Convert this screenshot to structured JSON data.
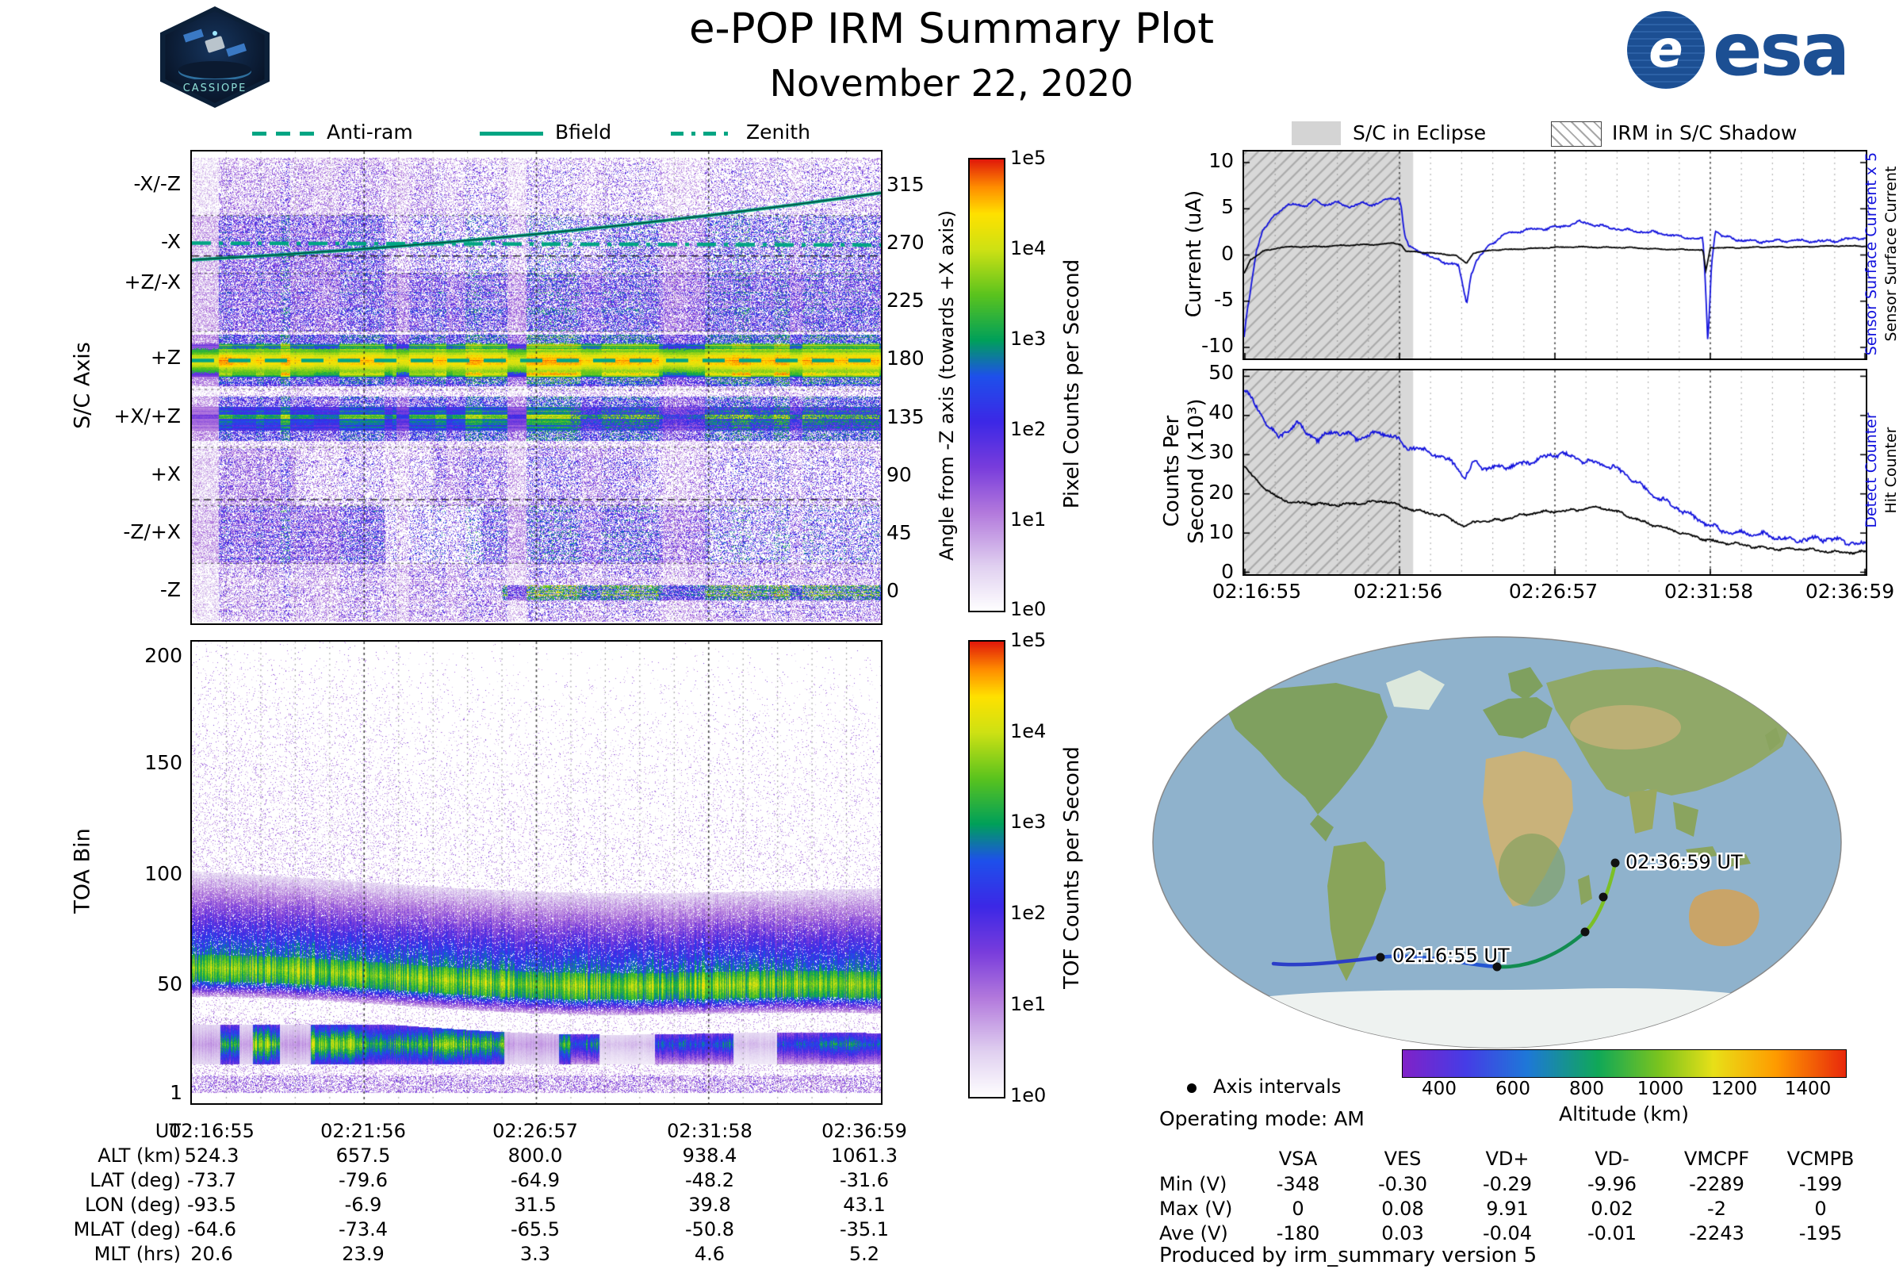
{
  "header": {
    "title": "e-POP IRM Summary Plot",
    "date": "November 22, 2020",
    "mission_badge": "CASSIOPE",
    "esa": {
      "circle_letter": "e",
      "wordmark": "esa"
    }
  },
  "colors": {
    "attitude_teal": "#00a583",
    "series_blue": "#1212dd",
    "series_black": "#000000",
    "eclipse_gray": "#d8d8d8"
  },
  "attitude_legend": [
    {
      "label": "Anti-ram",
      "style": "dashed"
    },
    {
      "label": "Bfield",
      "style": "solid"
    },
    {
      "label": "Zenith",
      "style": "dash-dot"
    }
  ],
  "eclipse_legend": [
    {
      "label": "S/C in Eclipse",
      "swatch": "solid-gray"
    },
    {
      "label": "IRM in S/C Shadow",
      "swatch": "hatched"
    }
  ],
  "chart_data": [
    {
      "id": "sc-axis-spectrogram",
      "type": "heatmap",
      "ylabel_left": "S/C Axis",
      "ylabel_right": "Angle from -Z axis (towards +X axis)",
      "yticks_left": [
        "-X/-Z",
        "-X",
        "+Z/-X",
        "+Z",
        "+X/+Z",
        "+X",
        "-Z/+X",
        "-Z"
      ],
      "yticks_right": [
        "315",
        "270",
        "225",
        "180",
        "135",
        "90",
        "45",
        "0"
      ],
      "xticks": [
        "02:16:55",
        "02:21:56",
        "02:26:57",
        "02:31:58",
        "02:36:59"
      ],
      "colorbar": {
        "label": "Pixel Counts per Second",
        "ticks": [
          "1e5",
          "1e4",
          "1e3",
          "1e2",
          "1e1",
          "1e0"
        ]
      },
      "overlay_lines": [
        {
          "name": "Anti-ram",
          "style": "dashed",
          "angle_deg": 180
        },
        {
          "name": "Bfield",
          "style": "solid",
          "angle_start_deg": 258,
          "angle_end_deg": 310
        },
        {
          "name": "Zenith",
          "style": "dash-dot",
          "angle_deg": 271
        }
      ],
      "band_levels": [
        {
          "axis": "-X/-Z",
          "angle_deg": 315,
          "counts_cps": "1e1-1e2 sparse"
        },
        {
          "axis": "-X",
          "angle_deg": 270,
          "counts_cps": "1e2 patchy, denser before 02:22"
        },
        {
          "axis": "+Z/-X",
          "angle_deg": 225,
          "counts_cps": "1e2 dense"
        },
        {
          "axis": "+Z",
          "angle_deg": 180,
          "counts_cps": "1e4-1e5 continuous bright band"
        },
        {
          "axis": "+X/+Z",
          "angle_deg": 135,
          "counts_cps": "1e3 green band"
        },
        {
          "axis": "+X",
          "angle_deg": 90,
          "counts_cps": "1e1-1e2 streaky"
        },
        {
          "axis": "-Z/+X",
          "angle_deg": 45,
          "counts_cps": "1e2 dense patches"
        },
        {
          "axis": "-Z",
          "angle_deg": 0,
          "counts_cps": "1e1-1e3, green streak at bottom after 02:26"
        }
      ]
    },
    {
      "id": "toa-spectrogram",
      "type": "heatmap",
      "ylabel": "TOA Bin",
      "yticks": [
        "200",
        "150",
        "100",
        "50",
        "1"
      ],
      "xticks": [
        "02:16:55",
        "02:21:56",
        "02:26:57",
        "02:31:58",
        "02:36:59"
      ],
      "colorbar": {
        "label": "TOF Counts per Second",
        "ticks": [
          "1e5",
          "1e4",
          "1e3",
          "1e2",
          "1e1",
          "1e0"
        ]
      },
      "features": {
        "main_band": "bins 45-70, center drifting 57 to 49, ~1e3 cps",
        "halo": "blue halo bins 65-105 at 1e1-1e2",
        "gap": "white gap bins 33-45",
        "secondary_band": "bins 16-32, green blobs turning blue after 02:27",
        "speckle": "sparse <=1e1 speckle up to bin 200"
      }
    },
    {
      "id": "sensor-current",
      "type": "line",
      "ylabel": "Current (uA)",
      "ylim": [
        -11.2,
        11.2
      ],
      "yticks": [
        10,
        5,
        0,
        -5,
        -10
      ],
      "xticks": [
        "02:16:55",
        "02:21:56",
        "02:26:57",
        "02:31:58",
        "02:36:59"
      ],
      "right_axis_labels": [
        {
          "text": "Sensor Surface Current x 5",
          "color": "#1212dd"
        },
        {
          "text": "Sensor Surface Current",
          "color": "#000000"
        }
      ],
      "eclipse_end_frac": 0.272,
      "shadow_end_frac": 0.252,
      "series": [
        {
          "name": "Sensor Surface Current x 5",
          "color": "#1212dd",
          "jitter": 0.22,
          "points": [
            [
              0,
              -9
            ],
            [
              0.004,
              -6.5
            ],
            [
              0.01,
              -4
            ],
            [
              0.014,
              -2
            ],
            [
              0.02,
              0.5
            ],
            [
              0.03,
              2.5
            ],
            [
              0.045,
              4.2
            ],
            [
              0.06,
              5
            ],
            [
              0.08,
              5.6
            ],
            [
              0.1,
              5.2
            ],
            [
              0.115,
              5.9
            ],
            [
              0.13,
              5.4
            ],
            [
              0.15,
              5.7
            ],
            [
              0.17,
              5.3
            ],
            [
              0.19,
              5.6
            ],
            [
              0.21,
              5.4
            ],
            [
              0.23,
              5.9
            ],
            [
              0.248,
              6.3
            ],
            [
              0.252,
              5.6
            ],
            [
              0.258,
              2.2
            ],
            [
              0.265,
              1
            ],
            [
              0.28,
              0.6
            ],
            [
              0.3,
              -0.2
            ],
            [
              0.32,
              -0.8
            ],
            [
              0.345,
              -1.2
            ],
            [
              0.358,
              -5.3
            ],
            [
              0.365,
              -2
            ],
            [
              0.375,
              -0.5
            ],
            [
              0.395,
              1.2
            ],
            [
              0.42,
              2.2
            ],
            [
              0.45,
              2.6
            ],
            [
              0.48,
              2.9
            ],
            [
              0.51,
              3.1
            ],
            [
              0.54,
              3.5
            ],
            [
              0.565,
              3.2
            ],
            [
              0.59,
              3
            ],
            [
              0.62,
              2.7
            ],
            [
              0.65,
              2.4
            ],
            [
              0.68,
              2.2
            ],
            [
              0.705,
              2
            ],
            [
              0.725,
              1.9
            ],
            [
              0.738,
              1.7
            ],
            [
              0.742,
              -3
            ],
            [
              0.746,
              -9.6
            ],
            [
              0.752,
              -1
            ],
            [
              0.758,
              2.6
            ],
            [
              0.77,
              1.9
            ],
            [
              0.8,
              1.6
            ],
            [
              0.85,
              1.5
            ],
            [
              0.9,
              1.5
            ],
            [
              0.95,
              1.6
            ],
            [
              1,
              1.8
            ]
          ]
        },
        {
          "name": "Sensor Surface Current",
          "color": "#000000",
          "jitter": 0.08,
          "points": [
            [
              0,
              -2
            ],
            [
              0.01,
              -0.5
            ],
            [
              0.03,
              0.4
            ],
            [
              0.06,
              0.8
            ],
            [
              0.1,
              0.9
            ],
            [
              0.15,
              1
            ],
            [
              0.2,
              1.1
            ],
            [
              0.24,
              1.3
            ],
            [
              0.252,
              1.2
            ],
            [
              0.26,
              0.4
            ],
            [
              0.3,
              0.2
            ],
            [
              0.34,
              0
            ],
            [
              0.358,
              -0.9
            ],
            [
              0.368,
              0.2
            ],
            [
              0.4,
              0.5
            ],
            [
              0.45,
              0.7
            ],
            [
              0.5,
              0.8
            ],
            [
              0.55,
              0.9
            ],
            [
              0.6,
              0.8
            ],
            [
              0.65,
              0.7
            ],
            [
              0.7,
              0.6
            ],
            [
              0.738,
              0.5
            ],
            [
              0.743,
              -1.8
            ],
            [
              0.75,
              0.8
            ],
            [
              0.8,
              0.8
            ],
            [
              0.9,
              0.9
            ],
            [
              1,
              1
            ]
          ]
        }
      ]
    },
    {
      "id": "counters",
      "type": "line",
      "ylabel_line1": "Counts Per",
      "ylabel_line2": "Second (x10³)",
      "ylim": [
        -0.5,
        51.5
      ],
      "yticks": [
        50,
        40,
        30,
        20,
        10,
        0
      ],
      "xticks": [
        "02:16:55",
        "02:21:56",
        "02:26:57",
        "02:31:58",
        "02:36:59"
      ],
      "right_axis_labels": [
        {
          "text": "Detect Counter",
          "color": "#1212dd"
        },
        {
          "text": "Hit Counter",
          "color": "#000000"
        }
      ],
      "eclipse_end_frac": 0.272,
      "shadow_end_frac": 0.252,
      "series": [
        {
          "name": "Detect Counter",
          "color": "#1212dd",
          "jitter": 1.0,
          "points": [
            [
              0,
              47
            ],
            [
              0.01,
              45
            ],
            [
              0.025,
              41
            ],
            [
              0.04,
              37
            ],
            [
              0.055,
              34
            ],
            [
              0.07,
              36
            ],
            [
              0.085,
              38
            ],
            [
              0.1,
              36
            ],
            [
              0.12,
              34
            ],
            [
              0.14,
              36
            ],
            [
              0.16,
              35
            ],
            [
              0.18,
              34
            ],
            [
              0.2,
              35
            ],
            [
              0.22,
              36
            ],
            [
              0.24,
              35
            ],
            [
              0.258,
              32
            ],
            [
              0.28,
              31
            ],
            [
              0.31,
              30
            ],
            [
              0.34,
              28
            ],
            [
              0.355,
              24
            ],
            [
              0.37,
              28
            ],
            [
              0.39,
              26
            ],
            [
              0.42,
              27
            ],
            [
              0.45,
              28
            ],
            [
              0.48,
              29
            ],
            [
              0.51,
              30
            ],
            [
              0.54,
              29
            ],
            [
              0.57,
              28
            ],
            [
              0.6,
              26
            ],
            [
              0.63,
              23
            ],
            [
              0.66,
              20
            ],
            [
              0.69,
              17
            ],
            [
              0.72,
              14
            ],
            [
              0.75,
              12
            ],
            [
              0.78,
              10.5
            ],
            [
              0.82,
              9.5
            ],
            [
              0.86,
              9
            ],
            [
              0.9,
              8.5
            ],
            [
              0.95,
              8
            ],
            [
              1,
              7.5
            ]
          ]
        },
        {
          "name": "Hit Counter",
          "color": "#000000",
          "jitter": 0.5,
          "points": [
            [
              0,
              27
            ],
            [
              0.015,
              24
            ],
            [
              0.035,
              21
            ],
            [
              0.055,
              19
            ],
            [
              0.08,
              18
            ],
            [
              0.11,
              17.5
            ],
            [
              0.14,
              17
            ],
            [
              0.17,
              17.5
            ],
            [
              0.2,
              18
            ],
            [
              0.23,
              18
            ],
            [
              0.255,
              16.5
            ],
            [
              0.29,
              15.5
            ],
            [
              0.32,
              14.5
            ],
            [
              0.355,
              11.5
            ],
            [
              0.375,
              13
            ],
            [
              0.41,
              13.5
            ],
            [
              0.45,
              14.5
            ],
            [
              0.49,
              15.5
            ],
            [
              0.53,
              16
            ],
            [
              0.57,
              16.5
            ],
            [
              0.61,
              15
            ],
            [
              0.65,
              12.5
            ],
            [
              0.69,
              10.5
            ],
            [
              0.73,
              9
            ],
            [
              0.77,
              7.5
            ],
            [
              0.82,
              6.5
            ],
            [
              0.87,
              6
            ],
            [
              0.92,
              5.5
            ],
            [
              1,
              5
            ]
          ]
        }
      ]
    }
  ],
  "ephemeris_table": {
    "row_labels": [
      "UT",
      "ALT (km)",
      "LAT (deg)",
      "LON (deg)",
      "MLAT (deg)",
      "MLT (hrs)"
    ],
    "columns": [
      [
        "02:16:55",
        "524.3",
        "-73.7",
        "-93.5",
        "-64.6",
        "20.6"
      ],
      [
        "02:21:56",
        "657.5",
        "-79.6",
        "-6.9",
        "-73.4",
        "23.9"
      ],
      [
        "02:26:57",
        "800.0",
        "-64.9",
        "31.5",
        "-65.5",
        "3.3"
      ],
      [
        "02:31:58",
        "938.4",
        "-48.2",
        "39.8",
        "-50.8",
        "4.6"
      ],
      [
        "02:36:59",
        "1061.3",
        "-31.6",
        "43.1",
        "-35.1",
        "5.2"
      ]
    ]
  },
  "map": {
    "track_labels": [
      {
        "text": "02:16:55 UT"
      },
      {
        "text": "02:36:59 UT"
      }
    ],
    "axis_intervals_label": "Axis intervals",
    "operating_mode_label": "Operating mode: AM",
    "altitude_colorbar": {
      "label": "Altitude (km)",
      "ticks": [
        "400",
        "600",
        "800",
        "1000",
        "1200",
        "1400"
      ],
      "range_km": [
        300,
        1500
      ]
    },
    "track_times": [
      "02:16:55",
      "02:21:56",
      "02:26:57",
      "02:31:58",
      "02:36:59"
    ],
    "track_altitudes_km": [
      524.3,
      657.5,
      800.0,
      938.4,
      1061.3
    ]
  },
  "voltage_table": {
    "columns": [
      "VSA",
      "VES",
      "VD+",
      "VD-",
      "VMCPF",
      "VCMPB"
    ],
    "rows": [
      {
        "label": "Min (V)",
        "values": [
          "-348",
          "-0.30",
          "-0.29",
          "-9.96",
          "-2289",
          "-199"
        ]
      },
      {
        "label": "Max (V)",
        "values": [
          "0",
          "0.08",
          "9.91",
          "0.02",
          "-2",
          "0"
        ]
      },
      {
        "label": "Ave (V)",
        "values": [
          "-180",
          "0.03",
          "-0.04",
          "-0.01",
          "-2243",
          "-195"
        ]
      }
    ]
  },
  "footer": {
    "produced_by": "Produced by irm_summary version 5"
  }
}
